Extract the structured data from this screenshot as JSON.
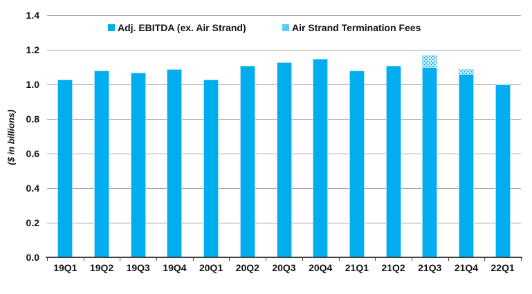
{
  "chart_data": {
    "type": "bar",
    "stacked": true,
    "title": "",
    "ylabel": "($ in billions)",
    "ylim": [
      0,
      1.4
    ],
    "ytick_step": 0.2,
    "yticks": [
      "1.4",
      "1.2",
      "1.0",
      "0.8",
      "0.6",
      "0.4",
      "0.2",
      "0.0"
    ],
    "categories": [
      "19Q1",
      "19Q2",
      "19Q3",
      "19Q4",
      "20Q1",
      "20Q2",
      "20Q3",
      "20Q4",
      "21Q1",
      "21Q2",
      "21Q3",
      "21Q4",
      "22Q1"
    ],
    "series": [
      {
        "name": "Adj. EBITDA (ex. Air Strand)",
        "style": "solid",
        "values": [
          1.03,
          1.08,
          1.07,
          1.09,
          1.03,
          1.11,
          1.13,
          1.15,
          1.08,
          1.11,
          1.1,
          1.06,
          1.0
        ]
      },
      {
        "name": "Air Strand Termination Fees",
        "style": "dotted",
        "values": [
          0,
          0,
          0,
          0,
          0,
          0,
          0,
          0,
          0,
          0,
          0.07,
          0.03,
          0
        ]
      }
    ],
    "legend_position": "top",
    "grid": true
  },
  "colors": {
    "bar_blue": "#00AEEF",
    "bar_border": "#A5DEF8",
    "pattern_bg": "#FFFFFF",
    "gridline": "#A6A6A6",
    "axis": "#404040",
    "text": "#111111"
  }
}
